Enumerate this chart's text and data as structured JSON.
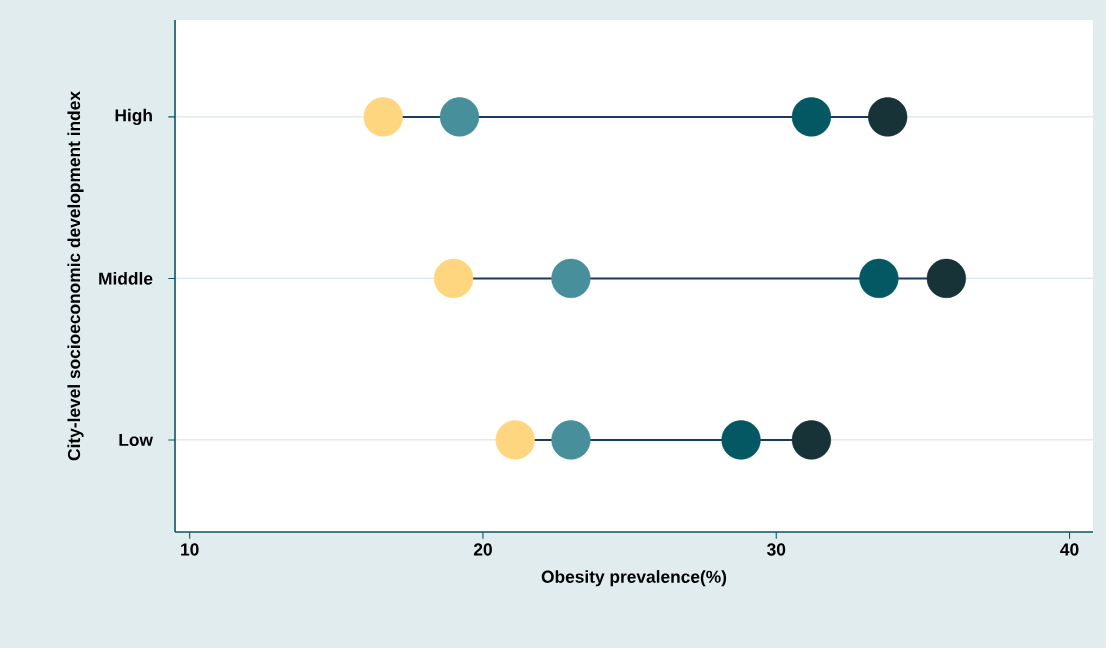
{
  "chart_data": {
    "type": "scatter",
    "orientation": "horizontal",
    "xlabel": "Obesity prevalence(%)",
    "ylabel": "City-level socioeconomic development index",
    "categories": [
      "High",
      "Middle",
      "Low"
    ],
    "xlim": [
      9.5,
      40.8
    ],
    "xticks": [
      10,
      20,
      30,
      40
    ],
    "grid": "y",
    "series": [
      {
        "color": "#ffd680",
        "values": [
          16.6,
          19.0,
          21.1
        ]
      },
      {
        "color": "#47909b",
        "values": [
          19.2,
          23.0,
          23.0
        ]
      },
      {
        "color": "#035864",
        "values": [
          31.2,
          33.5,
          28.8
        ]
      },
      {
        "color": "#173338",
        "values": [
          33.8,
          35.8,
          31.2
        ]
      }
    ]
  }
}
